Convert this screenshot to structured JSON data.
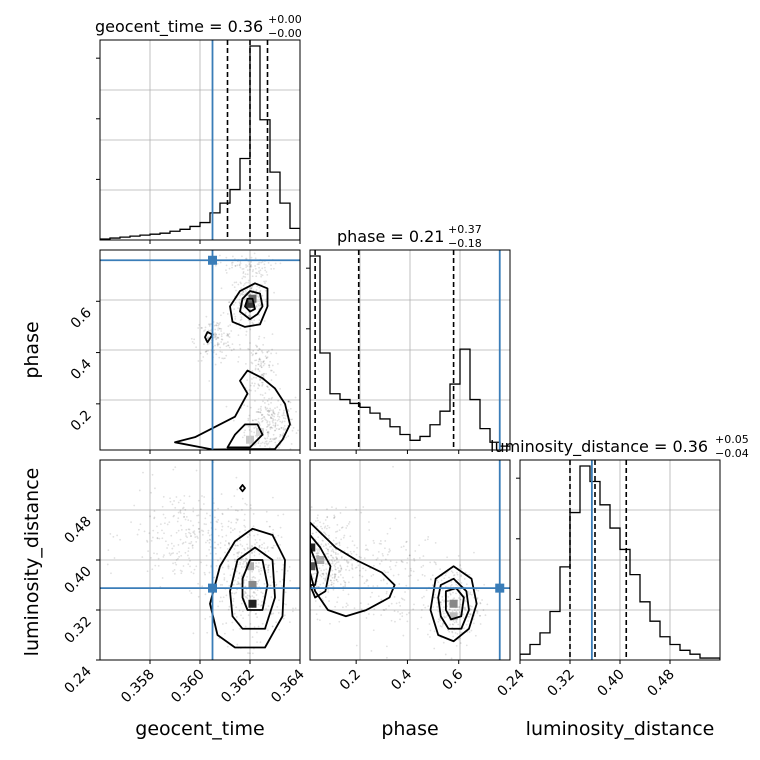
{
  "chart_data": {
    "type": "corner",
    "parameters": [
      "geocent_time",
      "phase",
      "luminosity_distance"
    ],
    "truth": {
      "geocent_time": 0.3605,
      "phase": 0.76,
      "luminosity_distance": 0.355,
      "color": "#3a7db8"
    },
    "titles": [
      {
        "param": "geocent_time",
        "text": "geocent_time = 0.36",
        "sup": "+0.00",
        "sub": "−0.00"
      },
      {
        "param": "phase",
        "text": "phase = 0.21",
        "sup": "+0.37",
        "sub": "−0.18"
      },
      {
        "param": "luminosity_distance",
        "text": "luminosity_distance = 0.36",
        "sup": "+0.05",
        "sub": "−0.04"
      }
    ],
    "axis_labels": {
      "geocent_time": "geocent_time",
      "phase": "phase",
      "luminosity_distance": "luminosity_distance"
    },
    "ranges": {
      "geocent_time": [
        0.356,
        0.364
      ],
      "phase": [
        0.02,
        0.8
      ],
      "luminosity_distance": [
        0.24,
        0.56
      ]
    },
    "ticks": {
      "geocent_time": [
        "0.358",
        "0.360",
        "0.362",
        "0.364"
      ],
      "phase": [
        "0.2",
        "0.4",
        "0.6"
      ],
      "luminosity_distance": [
        "0.24",
        "0.32",
        "0.40",
        "0.48"
      ]
    },
    "quantiles": {
      "geocent_time": [
        0.3611,
        0.362,
        0.3627
      ],
      "phase": [
        0.04,
        0.21,
        0.58
      ],
      "luminosity_distance": [
        0.32,
        0.36,
        0.41
      ]
    },
    "histograms": {
      "geocent_time": {
        "edges": [
          0.356,
          0.3564,
          0.3568,
          0.3572,
          0.3576,
          0.358,
          0.3584,
          0.3588,
          0.3592,
          0.3596,
          0.36,
          0.3604,
          0.3608,
          0.3612,
          0.3616,
          0.362,
          0.3624,
          0.3628,
          0.3632,
          0.3636,
          0.364
        ],
        "counts": [
          0.5,
          1,
          1.5,
          2,
          2.5,
          3,
          3.5,
          4.5,
          5.5,
          7,
          9,
          14,
          19,
          26,
          42,
          100,
          62,
          35,
          19,
          6
        ]
      },
      "phase": {
        "edges": [
          0.02,
          0.059,
          0.098,
          0.137,
          0.176,
          0.215,
          0.254,
          0.293,
          0.332,
          0.371,
          0.41,
          0.449,
          0.488,
          0.527,
          0.566,
          0.605,
          0.644,
          0.683,
          0.722,
          0.761,
          0.8
        ],
        "counts": [
          100,
          50,
          29,
          26,
          24,
          22,
          19,
          16,
          12,
          8,
          5,
          7,
          13,
          20,
          34,
          52,
          26,
          11,
          4,
          2
        ]
      },
      "luminosity_distance": {
        "edges": [
          0.24,
          0.256,
          0.272,
          0.288,
          0.304,
          0.32,
          0.336,
          0.352,
          0.368,
          0.384,
          0.4,
          0.416,
          0.432,
          0.448,
          0.464,
          0.48,
          0.496,
          0.512,
          0.528,
          0.544,
          0.56
        ],
        "counts": [
          3,
          8,
          14,
          25,
          48,
          76,
          100,
          92,
          80,
          68,
          57,
          44,
          30,
          20,
          12,
          8,
          5,
          3,
          1,
          1
        ]
      }
    },
    "contours": {
      "phase_vs_geocent_time": [
        [
          [
            0.363,
            0.024
          ],
          [
            0.3633,
            0.06
          ],
          [
            0.3636,
            0.12
          ],
          [
            0.3634,
            0.2
          ],
          [
            0.363,
            0.26
          ],
          [
            0.3625,
            0.3
          ],
          [
            0.3619,
            0.33
          ],
          [
            0.3616,
            0.29
          ],
          [
            0.3619,
            0.24
          ],
          [
            0.3614,
            0.15
          ],
          [
            0.3598,
            0.07
          ],
          [
            0.359,
            0.05
          ],
          [
            0.3605,
            0.022
          ]
        ],
        [
          [
            0.362,
            0.03
          ],
          [
            0.3625,
            0.08
          ],
          [
            0.3623,
            0.12
          ],
          [
            0.3618,
            0.12
          ],
          [
            0.3614,
            0.08
          ],
          [
            0.3611,
            0.03
          ]
        ],
        [
          [
            0.3627,
            0.58
          ],
          [
            0.3627,
            0.65
          ],
          [
            0.3622,
            0.67
          ],
          [
            0.3616,
            0.64
          ],
          [
            0.3612,
            0.58
          ],
          [
            0.3613,
            0.52
          ],
          [
            0.3618,
            0.5
          ],
          [
            0.3624,
            0.51
          ]
        ],
        [
          [
            0.3625,
            0.58
          ],
          [
            0.3624,
            0.63
          ],
          [
            0.362,
            0.64
          ],
          [
            0.3617,
            0.61
          ],
          [
            0.3616,
            0.56
          ],
          [
            0.362,
            0.53
          ],
          [
            0.3623,
            0.55
          ]
        ],
        [
          [
            0.3622,
            0.57
          ],
          [
            0.3621,
            0.61
          ],
          [
            0.3619,
            0.61
          ],
          [
            0.3618,
            0.58
          ],
          [
            0.362,
            0.56
          ]
        ],
        [
          [
            0.3603,
            0.44
          ],
          [
            0.3605,
            0.47
          ],
          [
            0.3603,
            0.48
          ],
          [
            0.3602,
            0.46
          ]
        ]
      ],
      "luminosity_distance_vs_geocent_time": [
        [
          [
            0.3614,
            0.26
          ],
          [
            0.3626,
            0.26
          ],
          [
            0.3633,
            0.31
          ],
          [
            0.3634,
            0.4
          ],
          [
            0.3629,
            0.44
          ],
          [
            0.3621,
            0.45
          ],
          [
            0.3614,
            0.43
          ],
          [
            0.3608,
            0.39
          ],
          [
            0.3604,
            0.33
          ],
          [
            0.3607,
            0.28
          ]
        ],
        [
          [
            0.3617,
            0.29
          ],
          [
            0.3626,
            0.29
          ],
          [
            0.363,
            0.34
          ],
          [
            0.3629,
            0.4
          ],
          [
            0.3622,
            0.42
          ],
          [
            0.3615,
            0.4
          ],
          [
            0.3612,
            0.35
          ],
          [
            0.3613,
            0.31
          ]
        ],
        [
          [
            0.3619,
            0.32
          ],
          [
            0.3625,
            0.32
          ],
          [
            0.3627,
            0.36
          ],
          [
            0.3625,
            0.4
          ],
          [
            0.362,
            0.4
          ],
          [
            0.3617,
            0.37
          ],
          [
            0.3617,
            0.34
          ]
        ],
        [
          [
            0.3617,
            0.51
          ],
          [
            0.3618,
            0.515
          ],
          [
            0.3617,
            0.52
          ],
          [
            0.3616,
            0.515
          ]
        ]
      ],
      "luminosity_distance_vs_phase": [
        [
          [
            0.02,
            0.46
          ],
          [
            0.07,
            0.44
          ],
          [
            0.12,
            0.42
          ],
          [
            0.2,
            0.4
          ],
          [
            0.3,
            0.38
          ],
          [
            0.35,
            0.36
          ],
          [
            0.33,
            0.34
          ],
          [
            0.24,
            0.32
          ],
          [
            0.16,
            0.31
          ],
          [
            0.09,
            0.32
          ],
          [
            0.04,
            0.35
          ],
          [
            0.02,
            0.38
          ]
        ],
        [
          [
            0.02,
            0.44
          ],
          [
            0.06,
            0.42
          ],
          [
            0.1,
            0.39
          ],
          [
            0.08,
            0.35
          ],
          [
            0.04,
            0.34
          ],
          [
            0.02,
            0.36
          ]
        ],
        [
          [
            0.02,
            0.42
          ],
          [
            0.04,
            0.4
          ],
          [
            0.05,
            0.38
          ],
          [
            0.04,
            0.36
          ],
          [
            0.02,
            0.36
          ]
        ],
        [
          [
            0.51,
            0.37
          ],
          [
            0.58,
            0.39
          ],
          [
            0.65,
            0.37
          ],
          [
            0.67,
            0.33
          ],
          [
            0.64,
            0.29
          ],
          [
            0.58,
            0.27
          ],
          [
            0.52,
            0.28
          ],
          [
            0.49,
            0.32
          ]
        ],
        [
          [
            0.53,
            0.36
          ],
          [
            0.58,
            0.37
          ],
          [
            0.63,
            0.35
          ],
          [
            0.64,
            0.32
          ],
          [
            0.61,
            0.29
          ],
          [
            0.56,
            0.29
          ],
          [
            0.53,
            0.31
          ],
          [
            0.52,
            0.34
          ]
        ],
        [
          [
            0.55,
            0.35
          ],
          [
            0.59,
            0.355
          ],
          [
            0.62,
            0.34
          ],
          [
            0.61,
            0.31
          ],
          [
            0.57,
            0.305
          ],
          [
            0.55,
            0.32
          ]
        ]
      ]
    },
    "grid": true
  }
}
